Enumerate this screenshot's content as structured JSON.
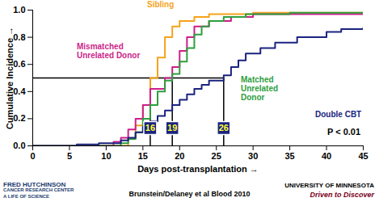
{
  "chart_data": {
    "type": "line",
    "line_style": "step",
    "grid": false,
    "x_label": "Days post-transplantation",
    "y_label": "Cumulative Incidence",
    "xlim": [
      0,
      45
    ],
    "xticks": [
      0,
      5,
      10,
      15,
      20,
      25,
      30,
      35,
      40,
      45
    ],
    "ylim": [
      0,
      1
    ],
    "yticks": [
      {
        "value": 0,
        "label": "0.0"
      },
      {
        "value": 0.2,
        "label": "0.2"
      },
      {
        "value": 0.4,
        "label": "0.4"
      },
      {
        "value": 0.6,
        "label": "0.6"
      },
      {
        "value": 0.8,
        "label": "0.8"
      },
      {
        "value": 1,
        "label": "1.0"
      }
    ],
    "series": [
      {
        "name": "Sibling",
        "color": "#f5a31a",
        "x": [
          0,
          13,
          14,
          15,
          16,
          17,
          18,
          19,
          20,
          22,
          24,
          30,
          45
        ],
        "values": [
          0,
          0.05,
          0.15,
          0.3,
          0.5,
          0.65,
          0.8,
          0.88,
          0.92,
          0.95,
          0.97,
          0.98,
          0.98
        ]
      },
      {
        "name": "Mismatched Unrelated Donor",
        "color": "#cc1f8a",
        "x": [
          0,
          11,
          12,
          13,
          14,
          15,
          16,
          18,
          19,
          20,
          21,
          22,
          24,
          27,
          30,
          45
        ],
        "values": [
          0,
          0.03,
          0.06,
          0.12,
          0.2,
          0.3,
          0.42,
          0.5,
          0.58,
          0.7,
          0.8,
          0.88,
          0.92,
          0.95,
          0.97,
          0.98
        ]
      },
      {
        "name": "Matched Unrelated Donor",
        "color": "#2e9e3e",
        "x": [
          0,
          12,
          13,
          14,
          15,
          16,
          17,
          18,
          19,
          20,
          21,
          22,
          23,
          24,
          26,
          29,
          35,
          45
        ],
        "values": [
          0,
          0.02,
          0.05,
          0.1,
          0.2,
          0.3,
          0.4,
          0.48,
          0.53,
          0.62,
          0.72,
          0.82,
          0.88,
          0.92,
          0.95,
          0.97,
          0.98,
          0.98
        ]
      },
      {
        "name": "Double CBT",
        "color": "#1a237e",
        "x": [
          0,
          6,
          9,
          12,
          13,
          14,
          15,
          16,
          17,
          18,
          19,
          20,
          21,
          22,
          23,
          24,
          26,
          27,
          28,
          29,
          31,
          33,
          36,
          40,
          42,
          45
        ],
        "values": [
          0,
          0.01,
          0.02,
          0.04,
          0.06,
          0.1,
          0.14,
          0.18,
          0.22,
          0.26,
          0.3,
          0.34,
          0.38,
          0.42,
          0.45,
          0.48,
          0.52,
          0.58,
          0.63,
          0.68,
          0.72,
          0.76,
          0.8,
          0.84,
          0.86,
          0.87
        ]
      }
    ],
    "medians": {
      "y": 0.5,
      "x": [
        16,
        19,
        26
      ]
    },
    "annotation": "P < 0.01",
    "footer": {
      "left": [
        "FRED HUTCHINSON",
        "CANCER RESEARCH CENTER",
        "A LIFE OF SCIENCE"
      ],
      "center": "Brunstein/Delaney et al Blood 2010",
      "right": [
        "UNIVERSITY OF MINNESOTA",
        "Driven to Discover"
      ]
    }
  }
}
